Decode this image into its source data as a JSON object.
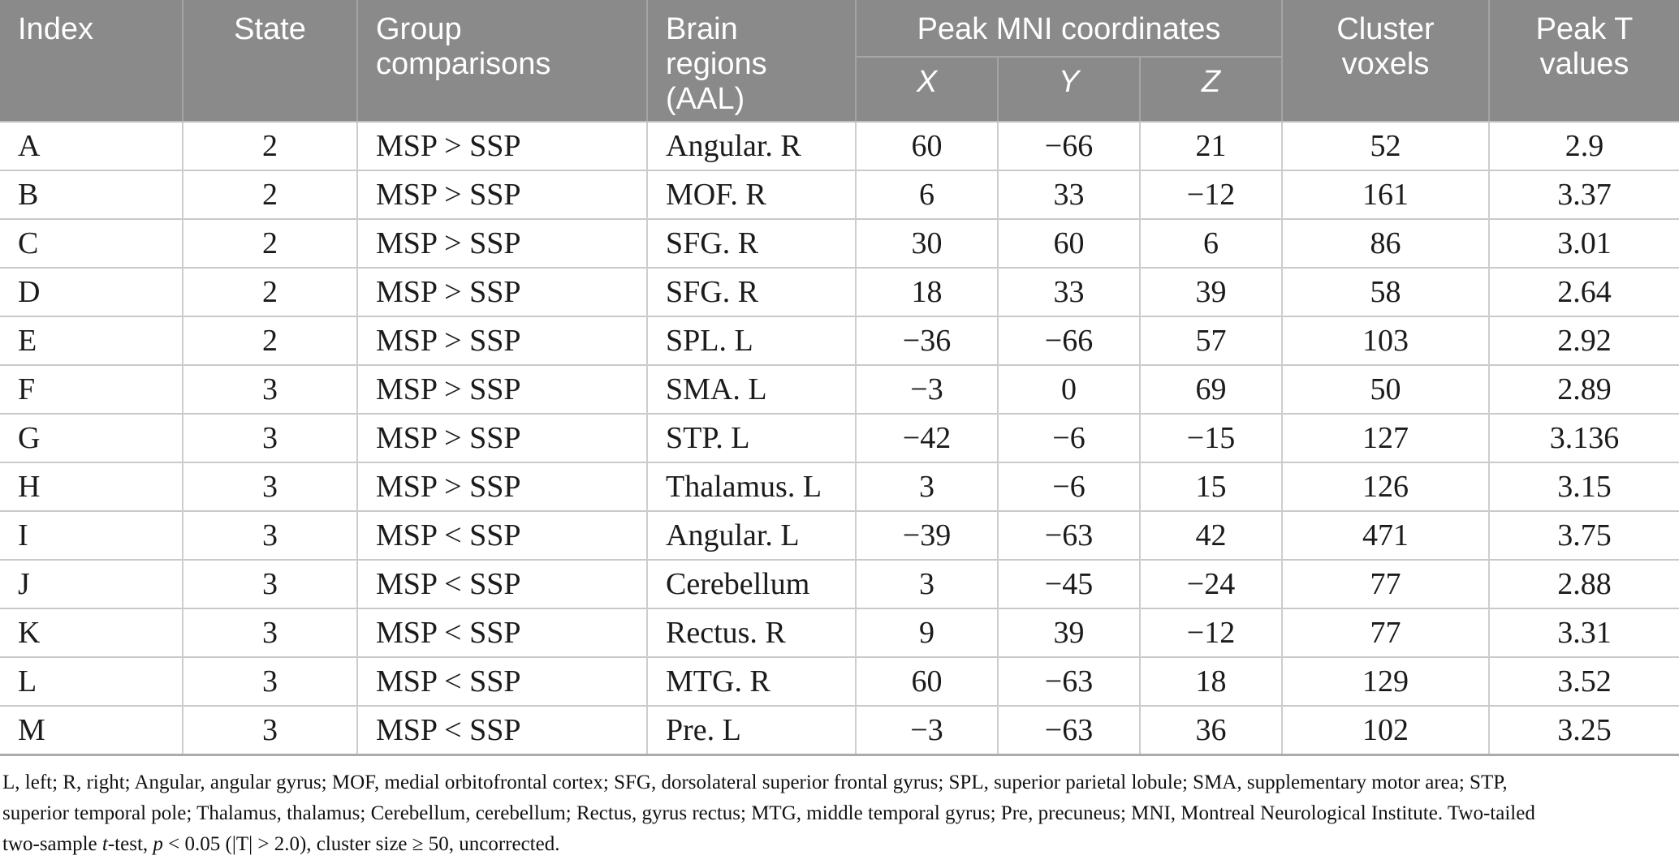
{
  "table": {
    "header": {
      "index": "Index",
      "state": "State",
      "group": "Group comparisons",
      "brain": "Brain regions (AAL)",
      "mni_group": "Peak MNI coordinates",
      "x": "X",
      "y": "Y",
      "z": "Z",
      "cluster": "Cluster voxels",
      "peak_t": "Peak T values"
    },
    "rows": [
      {
        "index": "A",
        "state": "2",
        "group": "MSP > SSP",
        "brain": "Angular. R",
        "x": "60",
        "y": "−66",
        "z": "21",
        "cluster": "52",
        "peak_t": "2.9"
      },
      {
        "index": "B",
        "state": "2",
        "group": "MSP > SSP",
        "brain": "MOF. R",
        "x": "6",
        "y": "33",
        "z": "−12",
        "cluster": "161",
        "peak_t": "3.37"
      },
      {
        "index": "C",
        "state": "2",
        "group": "MSP > SSP",
        "brain": "SFG. R",
        "x": "30",
        "y": "60",
        "z": "6",
        "cluster": "86",
        "peak_t": "3.01"
      },
      {
        "index": "D",
        "state": "2",
        "group": "MSP > SSP",
        "brain": "SFG. R",
        "x": "18",
        "y": "33",
        "z": "39",
        "cluster": "58",
        "peak_t": "2.64"
      },
      {
        "index": "E",
        "state": "2",
        "group": "MSP > SSP",
        "brain": "SPL. L",
        "x": "−36",
        "y": "−66",
        "z": "57",
        "cluster": "103",
        "peak_t": "2.92"
      },
      {
        "index": "F",
        "state": "3",
        "group": "MSP > SSP",
        "brain": "SMA. L",
        "x": "−3",
        "y": "0",
        "z": "69",
        "cluster": "50",
        "peak_t": "2.89"
      },
      {
        "index": "G",
        "state": "3",
        "group": "MSP > SSP",
        "brain": "STP. L",
        "x": "−42",
        "y": "−6",
        "z": "−15",
        "cluster": "127",
        "peak_t": "3.136"
      },
      {
        "index": "H",
        "state": "3",
        "group": "MSP > SSP",
        "brain": "Thalamus. L",
        "x": "3",
        "y": "−6",
        "z": "15",
        "cluster": "126",
        "peak_t": "3.15"
      },
      {
        "index": "I",
        "state": "3",
        "group": "MSP < SSP",
        "brain": "Angular. L",
        "x": "−39",
        "y": "−63",
        "z": "42",
        "cluster": "471",
        "peak_t": "3.75"
      },
      {
        "index": "J",
        "state": "3",
        "group": "MSP < SSP",
        "brain": "Cerebellum",
        "x": "3",
        "y": "−45",
        "z": "−24",
        "cluster": "77",
        "peak_t": "2.88"
      },
      {
        "index": "K",
        "state": "3",
        "group": "MSP < SSP",
        "brain": "Rectus. R",
        "x": "9",
        "y": "39",
        "z": "−12",
        "cluster": "77",
        "peak_t": "3.31"
      },
      {
        "index": "L",
        "state": "3",
        "group": "MSP < SSP",
        "brain": "MTG. R",
        "x": "60",
        "y": "−63",
        "z": "18",
        "cluster": "129",
        "peak_t": "3.52"
      },
      {
        "index": "M",
        "state": "3",
        "group": "MSP < SSP",
        "brain": "Pre. L",
        "x": "−3",
        "y": "−63",
        "z": "36",
        "cluster": "102",
        "peak_t": "3.25"
      }
    ]
  },
  "footnote": {
    "lines": [
      [
        {
          "t": "L, left; R, right; Angular, angular gyrus; MOF, medial orbitofrontal cortex; SFG, dorsolateral superior frontal gyrus; SPL, superior parietal lobule; SMA, supplementary motor area; STP,"
        }
      ],
      [
        {
          "t": "superior temporal pole; Thalamus, thalamus; Cerebellum, cerebellum; Rectus, gyrus rectus; MTG, middle temporal gyrus; Pre, precuneus; MNI, Montreal Neurological Institute. Two-tailed"
        }
      ],
      [
        {
          "t": "two-sample "
        },
        {
          "t": "t",
          "i": true
        },
        {
          "t": "-test, "
        },
        {
          "t": "p",
          "i": true
        },
        {
          "t": " < 0.05 (|T| > 2.0), cluster size ≥ 50, uncorrected."
        }
      ]
    ]
  },
  "colors": {
    "header_bg": "#8a8a8a",
    "header_text": "#ffffff",
    "row_border": "#c9c9c9",
    "table_bottom_border": "#ababab"
  }
}
